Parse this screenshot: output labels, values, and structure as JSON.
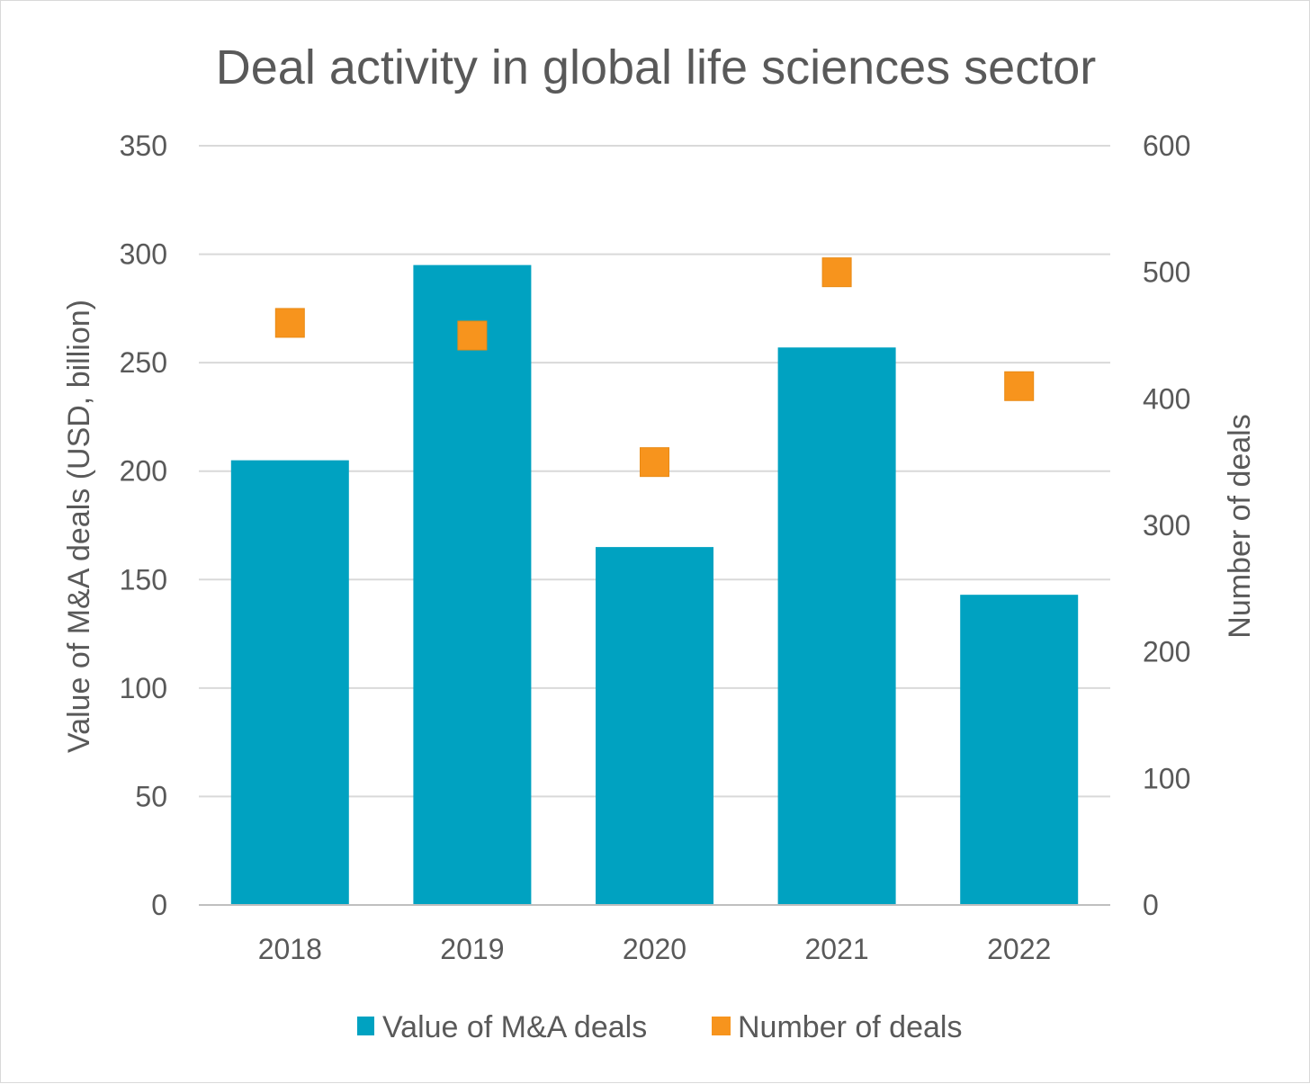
{
  "chart_data": {
    "type": "bar",
    "title": "Deal activity in global life sciences sector",
    "categories": [
      "2018",
      "2019",
      "2020",
      "2021",
      "2022"
    ],
    "series": [
      {
        "name": "Value of M&A deals",
        "type": "bar",
        "axis": "left",
        "color": "#00a2c1",
        "values": [
          205,
          295,
          165,
          257,
          143
        ]
      },
      {
        "name": "Number of deals",
        "type": "scatter",
        "marker": "square",
        "axis": "right",
        "color": "#f7941d",
        "values": [
          460,
          450,
          350,
          500,
          410
        ]
      }
    ],
    "ylabel": "Value of M&A deals (USD, billion)",
    "y2label": "Number of deals",
    "ylim": [
      0,
      350
    ],
    "y2lim": [
      0,
      600
    ],
    "yticks": [
      "0",
      "50",
      "100",
      "150",
      "200",
      "250",
      "300",
      "350"
    ],
    "y2ticks": [
      "0",
      "100",
      "200",
      "300",
      "400",
      "500",
      "600"
    ],
    "grid": true,
    "legend": "bottom"
  }
}
